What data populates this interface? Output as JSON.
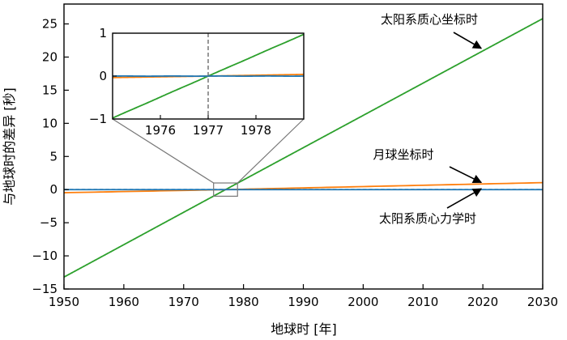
{
  "chart_data": {
    "type": "line",
    "xlabel": "地球时 [年]",
    "ylabel": "与地球时的差异 [秒]",
    "xlim": [
      1950,
      2030
    ],
    "ylim": [
      -15,
      28
    ],
    "x_ticks": [
      "1950",
      "1960",
      "1970",
      "1980",
      "1990",
      "2000",
      "2010",
      "2020",
      "2030"
    ],
    "y_ticks": [
      "−15",
      "−10",
      "−5",
      "0",
      "5",
      "10",
      "15",
      "20",
      "25"
    ],
    "grid": false,
    "colors": {
      "tcb": "#2ca02c",
      "tcg": "#ff7f0e",
      "tdb": "#1f77b4"
    },
    "series": [
      {
        "name": "太阳系质心坐标时",
        "key": "tcb",
        "points": [
          [
            1950,
            -13.2
          ],
          [
            1977,
            0.0
          ],
          [
            2030,
            25.8
          ]
        ],
        "oscillation_amplitude": 0.0017
      },
      {
        "name": "月球坐标时",
        "key": "tcg",
        "points": [
          [
            1950,
            -0.47
          ],
          [
            1977,
            0.0
          ],
          [
            2030,
            1.05
          ]
        ],
        "oscillation_amplitude": 0
      },
      {
        "name": "太阳系质心力学时",
        "key": "tdb",
        "points": [
          [
            1950,
            0.0
          ],
          [
            2030,
            0.0
          ]
        ],
        "oscillation_amplitude": 0.0017
      }
    ],
    "annotations": [
      {
        "text": "太阳系质心坐标时",
        "series": "tcb",
        "target": [
          2020,
          21.2
        ]
      },
      {
        "text": "月球坐标时",
        "series": "tcg",
        "target": [
          2020,
          0.95
        ]
      },
      {
        "text": "太阳系质心力学时",
        "series": "tdb",
        "target": [
          2020,
          0.0
        ]
      }
    ],
    "inset": {
      "xlim": [
        1975,
        1979
      ],
      "ylim": [
        -1,
        1
      ],
      "x_ticks": [
        "1976",
        "1977",
        "1978"
      ],
      "y_ticks": [
        "−1",
        "0",
        "1"
      ],
      "reference_line_x": 1977,
      "zoom_box": {
        "x": [
          1975,
          1979
        ],
        "y": [
          -1,
          1
        ]
      }
    }
  }
}
